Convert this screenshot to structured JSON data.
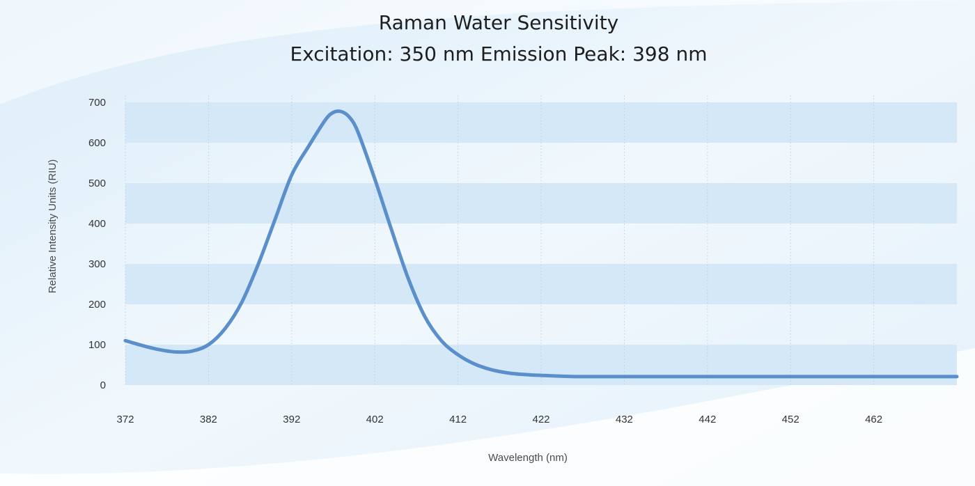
{
  "chart_data": {
    "type": "line",
    "title": "Raman Water Sensitivity",
    "subtitle": "Excitation: 350 nm Emission Peak: 398 nm",
    "xlabel": "Wavelength (nm)",
    "ylabel": "Relative Intensity Units (RIU)",
    "xlim": [
      372,
      472
    ],
    "ylim": [
      0,
      700
    ],
    "x_ticks": [
      372,
      382,
      392,
      402,
      412,
      422,
      432,
      442,
      452,
      462
    ],
    "x_tick_labels": [
      "372",
      "382",
      "392",
      "402",
      "412",
      "422",
      "432",
      "442",
      "452",
      "462"
    ],
    "y_ticks": [
      0,
      100,
      200,
      300,
      400,
      500,
      600,
      700
    ],
    "y_tick_labels": [
      "0",
      "100",
      "200",
      "300",
      "400",
      "500",
      "600",
      "700"
    ],
    "grid": {
      "horizontal_bands": true,
      "vertical_dotted": true
    },
    "legend": "none",
    "series": [
      {
        "name": "Raman Water",
        "color": "#5b8fcc",
        "x": [
          372,
          374,
          376,
          378,
          380,
          382,
          384,
          386,
          388,
          390,
          392,
          394,
          396,
          397,
          398,
          399,
          400,
          402,
          404,
          406,
          408,
          410,
          412,
          414,
          416,
          418,
          420,
          422,
          426,
          432,
          442,
          452,
          462,
          472
        ],
        "y": [
          110,
          98,
          88,
          82,
          84,
          100,
          140,
          205,
          300,
          410,
          520,
          590,
          655,
          675,
          677,
          662,
          625,
          510,
          385,
          265,
          170,
          110,
          75,
          52,
          38,
          30,
          26,
          24,
          21,
          21,
          21,
          21,
          21,
          21
        ]
      }
    ]
  },
  "colors": {
    "background": "#eef6fc",
    "band": "#d5e8f7",
    "line": "#5b8fcc",
    "gridline": "#a9c9e6"
  }
}
